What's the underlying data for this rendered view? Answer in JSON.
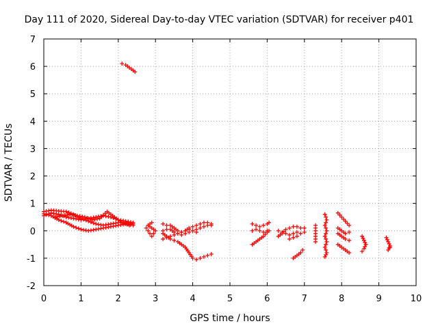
{
  "chart_data": {
    "type": "scatter",
    "title": "Day 111 of 2020, Sidereal Day-to-day VTEC variation (SDTVAR) for receiver p401",
    "xlabel": "GPS time / hours",
    "ylabel": "SDTVAR / TECUs",
    "xlim": [
      0,
      10
    ],
    "ylim": [
      -2,
      7
    ],
    "xticks": [
      "0",
      "1",
      "2",
      "3",
      "4",
      "5",
      "6",
      "7",
      "8",
      "9",
      "10"
    ],
    "yticks": [
      "-2",
      "-1",
      "0",
      "1",
      "2",
      "3",
      "4",
      "5",
      "6",
      "7"
    ],
    "grid": true,
    "marker": "+",
    "color": "#ff0000",
    "series": [
      {
        "segments": [
          [
            [
              0.0,
              0.55
            ],
            [
              0.2,
              0.65
            ],
            [
              0.4,
              0.6
            ],
            [
              0.6,
              0.5
            ],
            [
              0.8,
              0.45
            ],
            [
              1.0,
              0.4
            ],
            [
              1.2,
              0.45
            ],
            [
              1.4,
              0.5
            ],
            [
              1.6,
              0.55
            ],
            [
              1.8,
              0.5
            ],
            [
              2.0,
              0.4
            ],
            [
              2.2,
              0.35
            ],
            [
              2.4,
              0.3
            ]
          ],
          [
            [
              0.0,
              0.7
            ],
            [
              0.2,
              0.75
            ],
            [
              0.4,
              0.72
            ],
            [
              0.6,
              0.7
            ],
            [
              0.8,
              0.6
            ],
            [
              1.0,
              0.45
            ],
            [
              1.2,
              0.35
            ],
            [
              1.4,
              0.25
            ],
            [
              1.6,
              0.2
            ],
            [
              1.8,
              0.25
            ],
            [
              2.0,
              0.3
            ],
            [
              2.2,
              0.3
            ],
            [
              2.4,
              0.25
            ]
          ],
          [
            [
              0.0,
              0.62
            ],
            [
              0.2,
              0.55
            ],
            [
              0.4,
              0.4
            ],
            [
              0.6,
              0.3
            ],
            [
              0.8,
              0.15
            ],
            [
              1.0,
              0.05
            ],
            [
              1.2,
              0.0
            ],
            [
              1.4,
              0.05
            ],
            [
              1.6,
              0.1
            ],
            [
              1.8,
              0.15
            ],
            [
              2.0,
              0.2
            ],
            [
              2.2,
              0.25
            ],
            [
              2.4,
              0.2
            ]
          ],
          [
            [
              0.3,
              0.5
            ],
            [
              0.5,
              0.55
            ],
            [
              0.7,
              0.6
            ],
            [
              0.9,
              0.55
            ],
            [
              1.1,
              0.5
            ],
            [
              1.3,
              0.4
            ],
            [
              1.5,
              0.45
            ],
            [
              1.7,
              0.7
            ],
            [
              1.9,
              0.5
            ],
            [
              2.1,
              0.3
            ],
            [
              2.3,
              0.2
            ]
          ],
          [
            [
              2.1,
              6.1
            ],
            [
              2.2,
              6.05
            ],
            [
              2.3,
              5.95
            ],
            [
              2.4,
              5.85
            ],
            [
              2.45,
              5.8
            ]
          ],
          [
            [
              2.75,
              0.1
            ],
            [
              2.8,
              0.0
            ],
            [
              2.85,
              -0.1
            ],
            [
              2.9,
              -0.2
            ],
            [
              2.95,
              -0.1
            ],
            [
              3.0,
              0.0
            ],
            [
              2.8,
              0.2
            ],
            [
              2.9,
              0.3
            ]
          ],
          [
            [
              3.2,
              -0.1
            ],
            [
              3.3,
              -0.2
            ],
            [
              3.4,
              -0.3
            ],
            [
              3.5,
              -0.35
            ],
            [
              3.6,
              -0.4
            ],
            [
              3.7,
              -0.5
            ],
            [
              3.8,
              -0.6
            ],
            [
              3.9,
              -0.8
            ],
            [
              4.0,
              -1.0
            ],
            [
              4.1,
              -1.05
            ],
            [
              4.2,
              -1.0
            ],
            [
              4.3,
              -0.95
            ],
            [
              4.4,
              -0.9
            ],
            [
              4.5,
              -0.85
            ]
          ],
          [
            [
              3.2,
              0.0
            ],
            [
              3.3,
              0.05
            ],
            [
              3.4,
              0.05
            ],
            [
              3.5,
              -0.05
            ],
            [
              3.6,
              -0.1
            ],
            [
              3.7,
              -0.15
            ],
            [
              3.8,
              -0.1
            ],
            [
              3.9,
              -0.05
            ],
            [
              4.0,
              0.0
            ],
            [
              4.1,
              0.05
            ],
            [
              4.2,
              0.1
            ],
            [
              4.3,
              0.15
            ],
            [
              4.4,
              0.2
            ],
            [
              4.5,
              0.2
            ]
          ],
          [
            [
              3.2,
              0.25
            ],
            [
              3.3,
              0.2
            ],
            [
              3.4,
              0.2
            ],
            [
              3.5,
              0.1
            ],
            [
              3.6,
              0.0
            ],
            [
              3.7,
              -0.05
            ],
            [
              3.8,
              0.0
            ],
            [
              3.9,
              0.1
            ],
            [
              4.0,
              0.15
            ],
            [
              4.1,
              0.2
            ],
            [
              4.2,
              0.25
            ],
            [
              4.3,
              0.3
            ],
            [
              4.4,
              0.3
            ],
            [
              4.5,
              0.25
            ]
          ],
          [
            [
              3.2,
              -0.3
            ],
            [
              3.3,
              -0.25
            ],
            [
              3.4,
              -0.2
            ],
            [
              3.5,
              -0.15
            ],
            [
              3.6,
              -0.1
            ],
            [
              3.7,
              -0.05
            ],
            [
              3.8,
              0.0
            ],
            [
              3.9,
              0.05
            ],
            [
              4.0,
              0.0
            ],
            [
              4.1,
              -0.05
            ]
          ],
          [
            [
              5.6,
              0.25
            ],
            [
              5.7,
              0.2
            ],
            [
              5.8,
              0.15
            ],
            [
              5.9,
              0.2
            ],
            [
              6.0,
              0.25
            ],
            [
              6.05,
              0.3
            ]
          ],
          [
            [
              5.6,
              -0.5
            ],
            [
              5.7,
              -0.4
            ],
            [
              5.8,
              -0.3
            ],
            [
              5.9,
              -0.2
            ],
            [
              6.0,
              -0.05
            ],
            [
              6.05,
              0.0
            ]
          ],
          [
            [
              5.6,
              0.0
            ],
            [
              5.7,
              0.05
            ],
            [
              5.8,
              0.0
            ],
            [
              5.9,
              -0.05
            ],
            [
              6.0,
              0.0
            ]
          ],
          [
            [
              6.3,
              -0.2
            ],
            [
              6.4,
              -0.1
            ],
            [
              6.5,
              0.05
            ],
            [
              6.6,
              0.1
            ],
            [
              6.7,
              0.15
            ],
            [
              6.8,
              0.15
            ],
            [
              6.9,
              0.1
            ],
            [
              7.0,
              0.1
            ]
          ],
          [
            [
              6.3,
              0.0
            ],
            [
              6.4,
              -0.05
            ],
            [
              6.5,
              -0.1
            ],
            [
              6.6,
              -0.15
            ],
            [
              6.7,
              -0.1
            ],
            [
              6.8,
              -0.05
            ],
            [
              6.9,
              -0.1
            ],
            [
              7.0,
              -0.05
            ]
          ],
          [
            [
              6.6,
              -0.3
            ],
            [
              6.7,
              -0.25
            ],
            [
              6.8,
              -0.2
            ]
          ],
          [
            [
              6.7,
              -1.0
            ],
            [
              6.8,
              -0.9
            ],
            [
              6.9,
              -0.8
            ],
            [
              6.95,
              -0.7
            ]
          ],
          [
            [
              7.3,
              0.2
            ],
            [
              7.3,
              0.0
            ],
            [
              7.3,
              -0.2
            ],
            [
              7.3,
              -0.4
            ]
          ],
          [
            [
              7.55,
              0.6
            ],
            [
              7.6,
              0.4
            ],
            [
              7.55,
              0.2
            ],
            [
              7.6,
              0.0
            ],
            [
              7.55,
              -0.2
            ],
            [
              7.6,
              -0.4
            ],
            [
              7.55,
              -0.6
            ],
            [
              7.6,
              -0.8
            ],
            [
              7.55,
              -0.95
            ]
          ],
          [
            [
              7.9,
              0.65
            ],
            [
              8.0,
              0.5
            ],
            [
              8.1,
              0.35
            ],
            [
              8.2,
              0.2
            ]
          ],
          [
            [
              7.9,
              0.1
            ],
            [
              8.0,
              0.0
            ],
            [
              8.1,
              -0.1
            ],
            [
              8.2,
              -0.05
            ]
          ],
          [
            [
              7.9,
              -0.1
            ],
            [
              8.0,
              -0.2
            ],
            [
              8.1,
              -0.3
            ],
            [
              8.2,
              -0.35
            ]
          ],
          [
            [
              7.9,
              -0.5
            ],
            [
              8.0,
              -0.6
            ],
            [
              8.1,
              -0.7
            ],
            [
              8.2,
              -0.8
            ]
          ],
          [
            [
              8.55,
              -0.2
            ],
            [
              8.6,
              -0.35
            ],
            [
              8.65,
              -0.5
            ],
            [
              8.6,
              -0.65
            ],
            [
              8.55,
              -0.75
            ]
          ],
          [
            [
              9.2,
              -0.25
            ],
            [
              9.25,
              -0.4
            ],
            [
              9.3,
              -0.55
            ],
            [
              9.25,
              -0.7
            ],
            [
              9.3,
              -0.6
            ]
          ]
        ]
      }
    ]
  }
}
